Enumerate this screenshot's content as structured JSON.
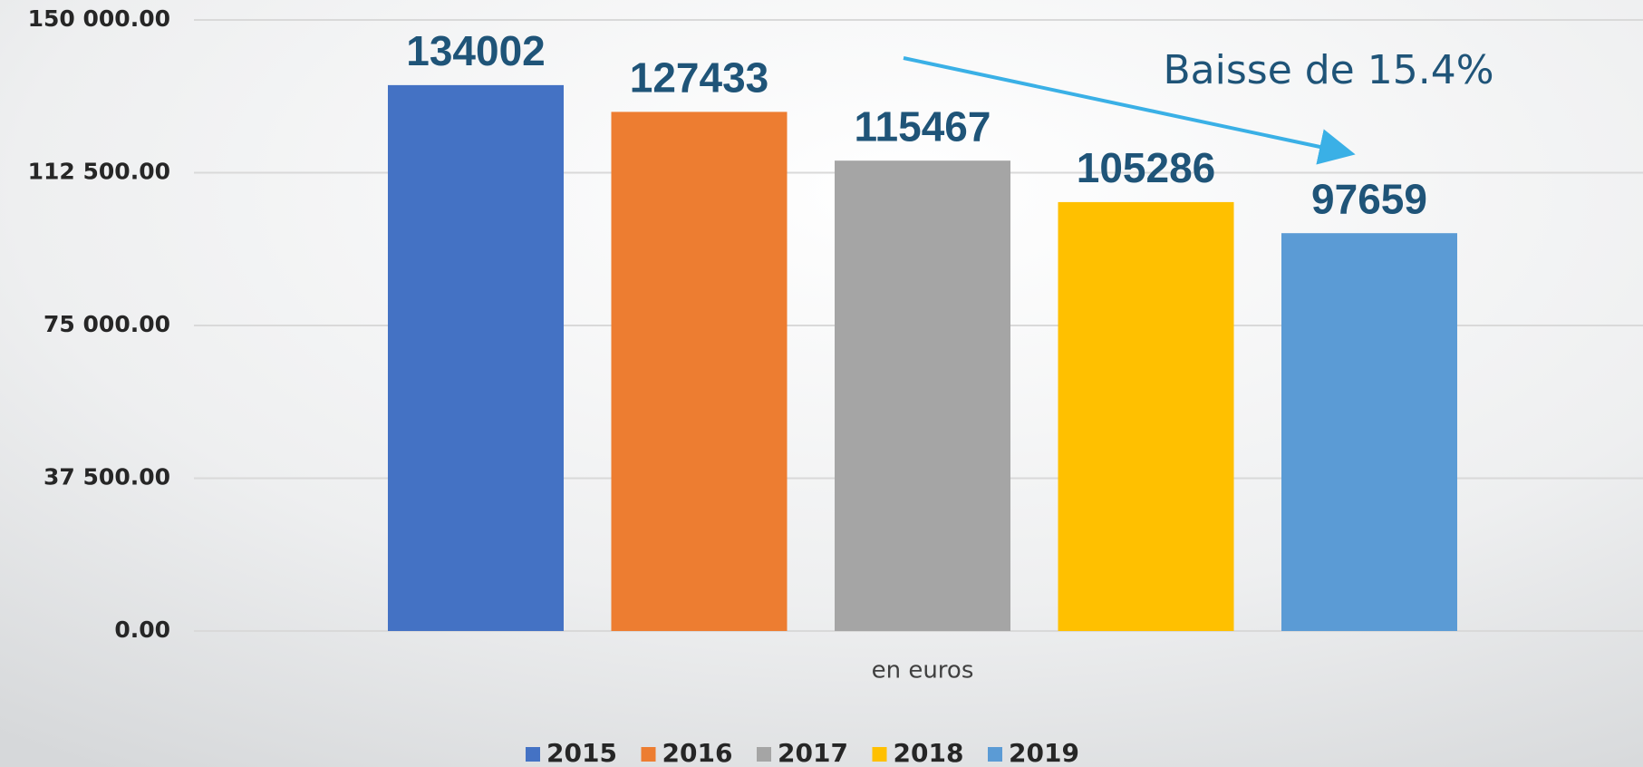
{
  "chart_data": {
    "type": "bar",
    "categories": [
      "en euros"
    ],
    "series": [
      {
        "name": "2015",
        "color": "#4472c4",
        "values": [
          134002
        ]
      },
      {
        "name": "2016",
        "color": "#ed7d31",
        "values": [
          127433
        ]
      },
      {
        "name": "2017",
        "color": "#a5a5a5",
        "values": [
          115467
        ]
      },
      {
        "name": "2018",
        "color": "#ffc000",
        "values": [
          105286
        ]
      },
      {
        "name": "2019",
        "color": "#5b9bd5",
        "values": [
          97659
        ]
      }
    ],
    "ylim": [
      0,
      150000
    ],
    "yticks": [
      {
        "value": 0,
        "label": "0.00"
      },
      {
        "value": 37500,
        "label": "37 500.00"
      },
      {
        "value": 75000,
        "label": "75 000.00"
      },
      {
        "value": 112500,
        "label": "112 500.00"
      },
      {
        "value": 150000,
        "label": "150 000.00"
      }
    ],
    "grid": true,
    "legend": "bottom",
    "annotation": "Baisse de 15.4%"
  }
}
